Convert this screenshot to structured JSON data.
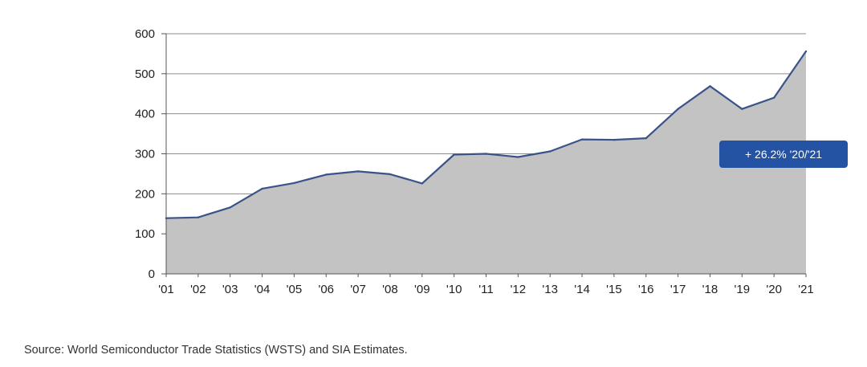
{
  "chart_data": {
    "type": "area",
    "title": "",
    "xlabel": "",
    "ylabel": "",
    "categories": [
      "'01",
      "'02",
      "'03",
      "'04",
      "'05",
      "'06",
      "'07",
      "'08",
      "'09",
      "'10",
      "'11",
      "'12",
      "'13",
      "'14",
      "'15",
      "'16",
      "'17",
      "'18",
      "'19",
      "'20",
      "'21"
    ],
    "values": [
      139,
      141,
      166,
      213,
      227,
      248,
      256,
      249,
      226,
      298,
      300,
      292,
      306,
      336,
      335,
      339,
      412,
      469,
      412,
      440,
      556
    ],
    "ylim": [
      0,
      600
    ],
    "yticks": [
      0,
      100,
      200,
      300,
      400,
      500,
      600
    ],
    "grid": true,
    "line_color": "#3a5389",
    "fill_color": "#c3c3c3",
    "annotation": "+ 26.2% '20/'21",
    "annotation_color": "#2553a3"
  },
  "source": "Source: World Semiconductor Trade Statistics (WSTS) and SIA Estimates."
}
